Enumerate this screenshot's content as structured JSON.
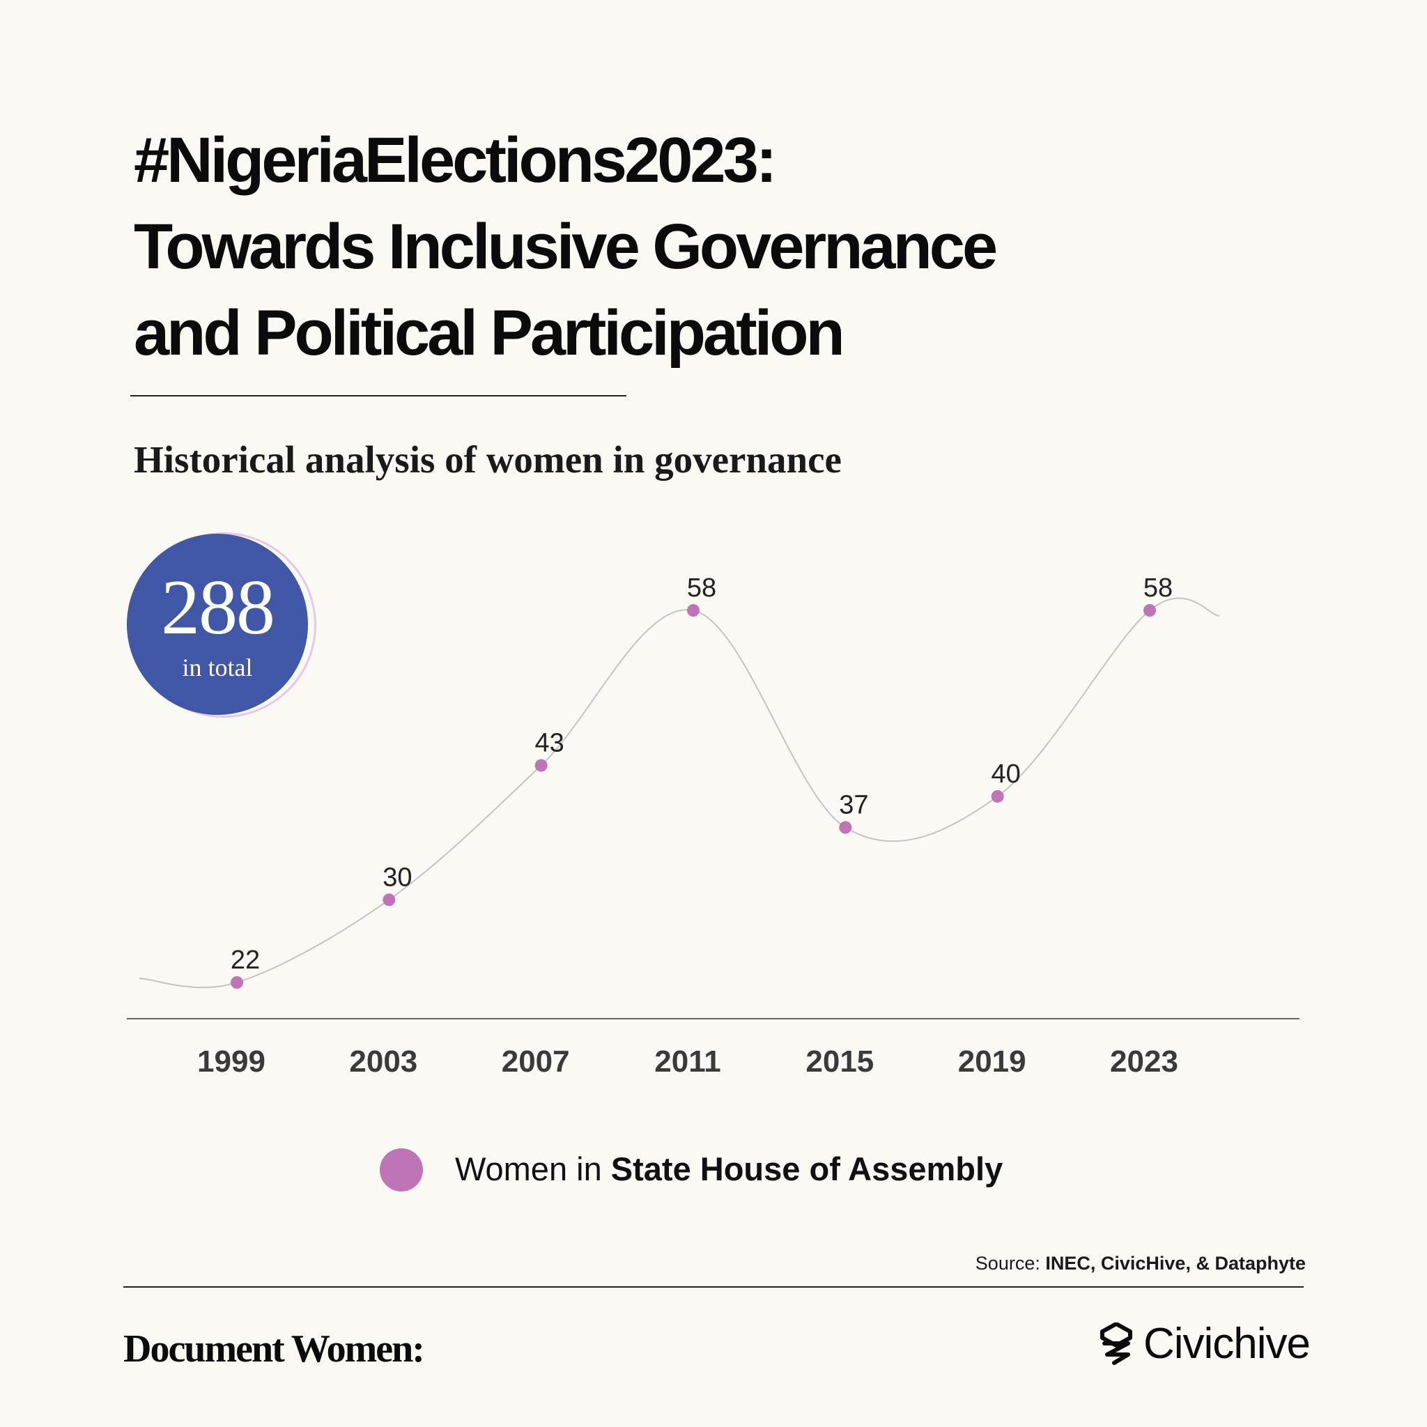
{
  "header": {
    "title_lines": [
      "#NigeriaElections2023:",
      "Towards Inclusive Governance",
      "and Political Participation"
    ],
    "subtitle": "Historical analysis of women in governance"
  },
  "total": {
    "value": "288",
    "label": "in total"
  },
  "chart_data": {
    "type": "line",
    "x": [
      "1999",
      "2003",
      "2007",
      "2011",
      "2015",
      "2019",
      "2023"
    ],
    "series": [
      {
        "name": "Women in State House of Assembly",
        "values": [
          22,
          30,
          43,
          58,
          37,
          40,
          58
        ]
      }
    ],
    "value_labels": [
      "22",
      "30",
      "43",
      "58",
      "37",
      "40",
      "58"
    ],
    "smooth": true,
    "grid": false,
    "point_color": "#be74b5",
    "line_color": "#c4c4c4"
  },
  "legend": {
    "prefix": "Women in",
    "bold": "State House of Assembly",
    "color": "#be74b5"
  },
  "source": {
    "prefix": "Source:",
    "bold": "INEC, CivicHive, & Dataphyte"
  },
  "footer": {
    "left_brand": "Document Women:",
    "right_brand": "Civichive",
    "right_icon": "civichive-logo-icon"
  },
  "colors": {
    "background": "#faf9f4",
    "badge": "#3f57a6",
    "accent": "#be74b5"
  }
}
